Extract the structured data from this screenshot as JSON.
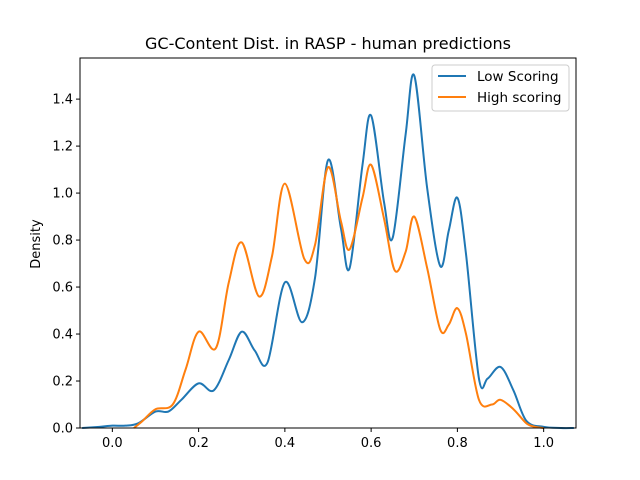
{
  "chart_data": {
    "type": "line",
    "title": "GC-Content Dist. in RASP - human predictions",
    "xlabel": "",
    "ylabel": "Density",
    "xlim": [
      -0.075,
      1.075
    ],
    "ylim": [
      0,
      1.575
    ],
    "xticks": [
      0.0,
      0.2,
      0.4,
      0.6,
      0.8,
      1.0
    ],
    "xtick_labels": [
      "0.0",
      "0.2",
      "0.4",
      "0.6",
      "0.8",
      "1.0"
    ],
    "yticks": [
      0.0,
      0.2,
      0.4,
      0.6,
      0.8,
      1.0,
      1.2,
      1.4
    ],
    "ytick_labels": [
      "0.0",
      "0.2",
      "0.4",
      "0.6",
      "0.8",
      "1.0",
      "1.2",
      "1.4"
    ],
    "grid": false,
    "legend_position": "top-right",
    "series": [
      {
        "name": "Low Scoring",
        "color": "#1f77b4",
        "x": [
          -0.07,
          -0.03,
          0.0,
          0.03,
          0.06,
          0.1,
          0.13,
          0.16,
          0.2,
          0.235,
          0.27,
          0.3,
          0.33,
          0.36,
          0.4,
          0.44,
          0.47,
          0.5,
          0.53,
          0.55,
          0.58,
          0.6,
          0.63,
          0.65,
          0.68,
          0.7,
          0.73,
          0.76,
          0.78,
          0.8,
          0.82,
          0.85,
          0.87,
          0.9,
          0.93,
          0.96,
          1.0,
          1.04,
          1.07
        ],
        "y": [
          0.0,
          0.005,
          0.01,
          0.01,
          0.02,
          0.07,
          0.07,
          0.12,
          0.19,
          0.16,
          0.29,
          0.41,
          0.33,
          0.28,
          0.62,
          0.45,
          0.64,
          1.14,
          0.85,
          0.68,
          1.12,
          1.33,
          0.96,
          0.81,
          1.25,
          1.5,
          1.02,
          0.69,
          0.84,
          0.98,
          0.74,
          0.21,
          0.21,
          0.26,
          0.16,
          0.03,
          0.005,
          0.0,
          0.0
        ]
      },
      {
        "name": "High scoring",
        "color": "#ff7f0e",
        "x": [
          0.05,
          0.07,
          0.1,
          0.14,
          0.17,
          0.2,
          0.24,
          0.27,
          0.3,
          0.34,
          0.37,
          0.4,
          0.445,
          0.47,
          0.5,
          0.53,
          0.55,
          0.58,
          0.6,
          0.63,
          0.655,
          0.68,
          0.7,
          0.73,
          0.76,
          0.78,
          0.8,
          0.82,
          0.85,
          0.88,
          0.9,
          0.93,
          0.96,
          0.98,
          1.0
        ],
        "y": [
          0.0,
          0.03,
          0.08,
          0.1,
          0.25,
          0.41,
          0.34,
          0.62,
          0.79,
          0.56,
          0.73,
          1.04,
          0.72,
          0.78,
          1.11,
          0.88,
          0.76,
          0.98,
          1.12,
          0.89,
          0.67,
          0.75,
          0.9,
          0.68,
          0.42,
          0.44,
          0.51,
          0.4,
          0.12,
          0.1,
          0.12,
          0.08,
          0.02,
          0.005,
          0.0
        ]
      }
    ]
  }
}
